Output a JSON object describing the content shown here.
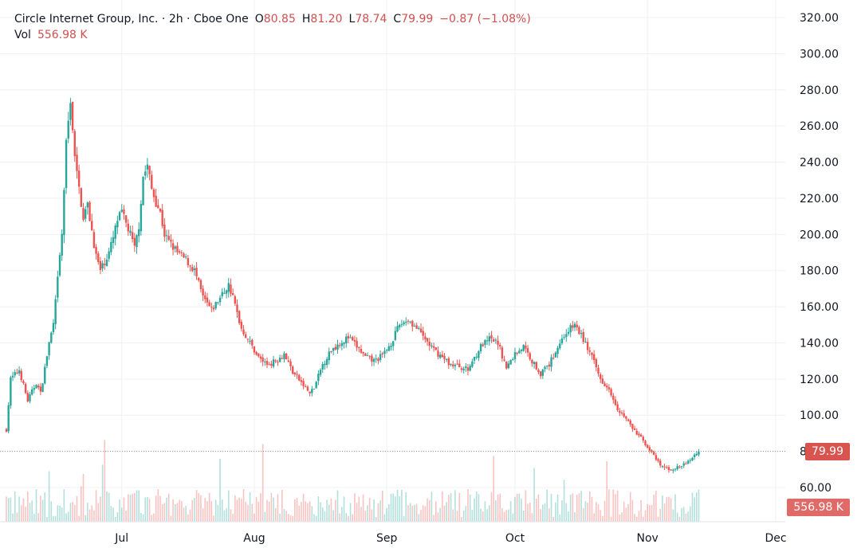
{
  "header": {
    "title": "Circle Internet Group, Inc. · 2h · Cboe One",
    "open_label": "O",
    "open": "80.85",
    "high_label": "H",
    "high": "81.20",
    "low_label": "L",
    "low": "78.74",
    "close_label": "C",
    "close": "79.99",
    "change": "−0.87 (−1.08%)",
    "volume_label": "Vol",
    "volume": "556.98 K"
  },
  "tags": {
    "price": "79.99",
    "volume": "556.98 K"
  },
  "colors": {
    "up": "#26a69a",
    "down": "#ef5350",
    "grid": "#eef0f3",
    "price_line": "#8a8f99"
  },
  "chart_data": {
    "type": "candlestick",
    "title": "",
    "xlabel": "",
    "ylabel": "",
    "ylim": [
      50,
      325
    ],
    "y_ticks": [
      60,
      80,
      100,
      120,
      140,
      160,
      180,
      200,
      220,
      240,
      260,
      280,
      300,
      320
    ],
    "y_tick_labels": [
      "60.00",
      "80.00",
      "100.00",
      "120.00",
      "140.00",
      "160.00",
      "180.00",
      "200.00",
      "220.00",
      "240.00",
      "260.00",
      "280.00",
      "300.00",
      "320.00"
    ],
    "x_ticks": [
      {
        "label": "Jul",
        "day": 27
      },
      {
        "label": "Aug",
        "day": 58
      },
      {
        "label": "Sep",
        "day": 89
      },
      {
        "label": "Oct",
        "day": 119
      },
      {
        "label": "Nov",
        "day": 150
      },
      {
        "label": "Dec",
        "day": 180
      }
    ],
    "last_price": 79.99,
    "last_volume": "556.98 K",
    "close_anchors": [
      [
        0,
        92
      ],
      [
        1,
        120
      ],
      [
        3,
        125
      ],
      [
        5,
        108
      ],
      [
        7,
        118
      ],
      [
        8,
        112
      ],
      [
        10,
        140
      ],
      [
        11,
        150
      ],
      [
        13,
        200
      ],
      [
        14,
        250
      ],
      [
        15,
        275
      ],
      [
        16,
        242
      ],
      [
        17,
        225
      ],
      [
        18,
        210
      ],
      [
        19,
        216
      ],
      [
        20,
        202
      ],
      [
        21,
        188
      ],
      [
        22,
        180
      ],
      [
        24,
        190
      ],
      [
        25,
        198
      ],
      [
        26,
        208
      ],
      [
        27,
        212
      ],
      [
        29,
        200
      ],
      [
        30,
        192
      ],
      [
        31,
        205
      ],
      [
        32,
        232
      ],
      [
        33,
        238
      ],
      [
        34,
        225
      ],
      [
        35,
        218
      ],
      [
        36,
        212
      ],
      [
        37,
        200
      ],
      [
        38,
        196
      ],
      [
        40,
        190
      ],
      [
        42,
        186
      ],
      [
        44,
        180
      ],
      [
        46,
        165
      ],
      [
        48,
        158
      ],
      [
        50,
        165
      ],
      [
        52,
        172
      ],
      [
        53,
        165
      ],
      [
        55,
        148
      ],
      [
        57,
        140
      ],
      [
        59,
        132
      ],
      [
        61,
        128
      ],
      [
        63,
        130
      ],
      [
        65,
        134
      ],
      [
        67,
        124
      ],
      [
        69,
        118
      ],
      [
        71,
        112
      ],
      [
        72,
        115
      ],
      [
        74,
        128
      ],
      [
        76,
        136
      ],
      [
        78,
        140
      ],
      [
        80,
        143
      ],
      [
        82,
        138
      ],
      [
        84,
        132
      ],
      [
        86,
        130
      ],
      [
        88,
        133
      ],
      [
        90,
        140
      ],
      [
        92,
        150
      ],
      [
        94,
        153
      ],
      [
        96,
        148
      ],
      [
        98,
        142
      ],
      [
        100,
        136
      ],
      [
        102,
        132
      ],
      [
        104,
        128
      ],
      [
        106,
        127
      ],
      [
        108,
        125
      ],
      [
        109,
        130
      ],
      [
        111,
        138
      ],
      [
        113,
        142
      ],
      [
        115,
        140
      ],
      [
        117,
        126
      ],
      [
        119,
        134
      ],
      [
        121,
        138
      ],
      [
        123,
        130
      ],
      [
        125,
        123
      ],
      [
        127,
        128
      ],
      [
        129,
        138
      ],
      [
        131,
        146
      ],
      [
        133,
        150
      ],
      [
        135,
        142
      ],
      [
        137,
        132
      ],
      [
        139,
        120
      ],
      [
        141,
        115
      ],
      [
        143,
        104
      ],
      [
        145,
        98
      ],
      [
        147,
        91
      ],
      [
        149,
        86
      ],
      [
        151,
        79
      ],
      [
        153,
        72
      ],
      [
        155,
        70
      ],
      [
        157,
        71
      ],
      [
        159,
        73
      ],
      [
        161,
        78
      ],
      [
        162,
        79.99
      ]
    ]
  }
}
